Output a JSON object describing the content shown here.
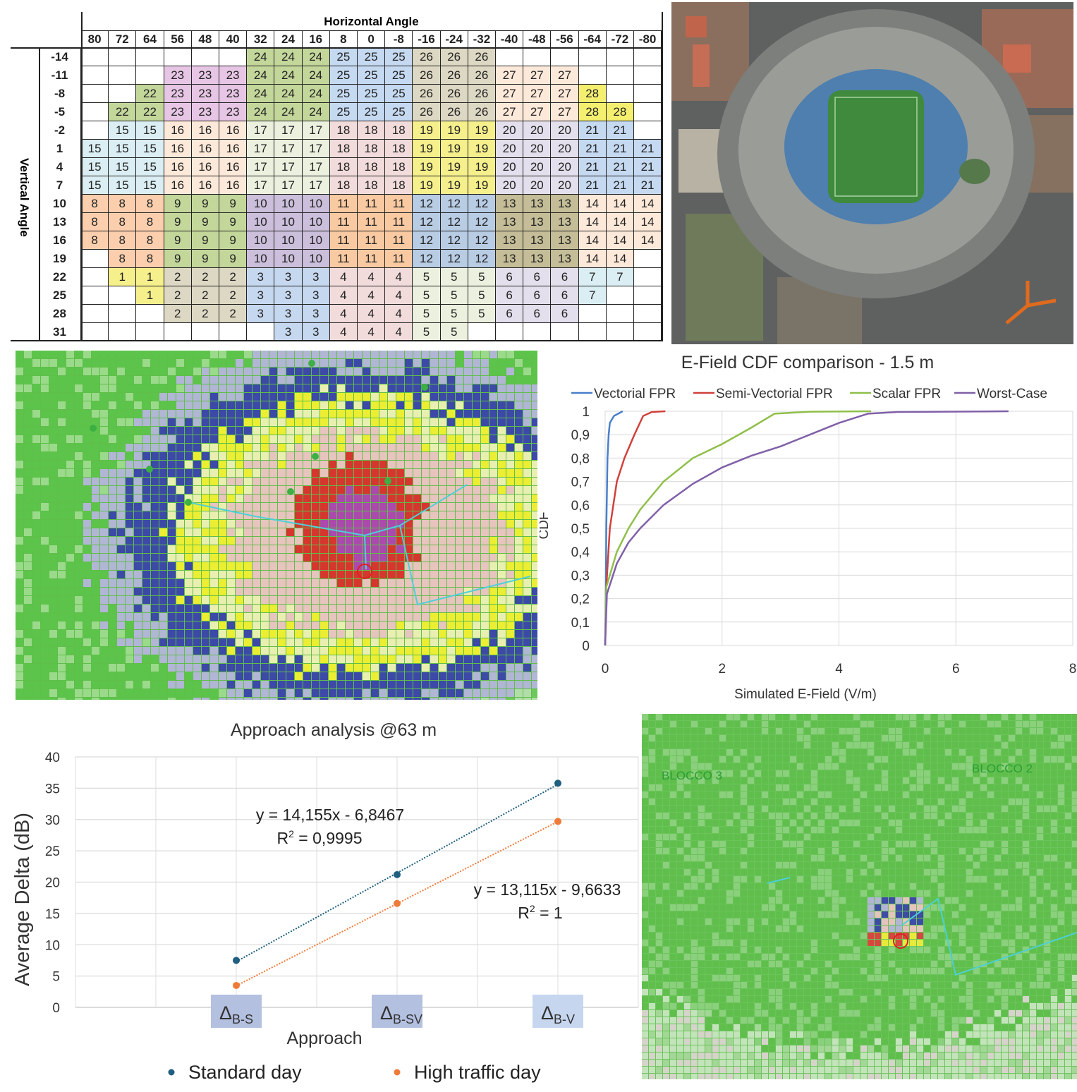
{
  "beam_table": {
    "horizontal_title": "Horizontal Angle",
    "vertical_title": "Vertical Angle",
    "columns": [
      "80",
      "72",
      "64",
      "56",
      "48",
      "40",
      "32",
      "24",
      "16",
      "8",
      "0",
      "-8",
      "-16",
      "-24",
      "-32",
      "-40",
      "-48",
      "-56",
      "-64",
      "-72",
      "-80"
    ],
    "rows": [
      {
        "angle": "-14",
        "beams": [
          null,
          null,
          null,
          null,
          null,
          null,
          24,
          24,
          24,
          25,
          25,
          25,
          26,
          26,
          26,
          null,
          null,
          null,
          null,
          null,
          null
        ]
      },
      {
        "angle": "-11",
        "beams": [
          null,
          null,
          null,
          23,
          23,
          23,
          24,
          24,
          24,
          25,
          25,
          25,
          26,
          26,
          26,
          27,
          27,
          27,
          null,
          null,
          null
        ]
      },
      {
        "angle": "-8",
        "beams": [
          null,
          null,
          22,
          23,
          23,
          23,
          24,
          24,
          24,
          25,
          25,
          25,
          26,
          26,
          26,
          27,
          27,
          27,
          28,
          null,
          null
        ]
      },
      {
        "angle": "-5",
        "beams": [
          null,
          22,
          22,
          23,
          23,
          23,
          24,
          24,
          24,
          25,
          25,
          25,
          26,
          26,
          26,
          27,
          27,
          27,
          28,
          28,
          null
        ]
      },
      {
        "angle": "-2",
        "beams": [
          null,
          15,
          15,
          16,
          16,
          16,
          17,
          17,
          17,
          18,
          18,
          18,
          19,
          19,
          19,
          20,
          20,
          20,
          21,
          21,
          null
        ]
      },
      {
        "angle": "1",
        "beams": [
          15,
          15,
          15,
          16,
          16,
          16,
          17,
          17,
          17,
          18,
          18,
          18,
          19,
          19,
          19,
          20,
          20,
          20,
          21,
          21,
          21
        ]
      },
      {
        "angle": "4",
        "beams": [
          15,
          15,
          15,
          16,
          16,
          16,
          17,
          17,
          17,
          18,
          18,
          18,
          19,
          19,
          19,
          20,
          20,
          20,
          21,
          21,
          21
        ]
      },
      {
        "angle": "7",
        "beams": [
          15,
          15,
          15,
          16,
          16,
          16,
          17,
          17,
          17,
          18,
          18,
          18,
          19,
          19,
          19,
          20,
          20,
          20,
          21,
          21,
          21
        ]
      },
      {
        "angle": "10",
        "beams": [
          8,
          8,
          8,
          9,
          9,
          9,
          10,
          10,
          10,
          11,
          11,
          11,
          12,
          12,
          12,
          13,
          13,
          13,
          14,
          14,
          14
        ]
      },
      {
        "angle": "13",
        "beams": [
          8,
          8,
          8,
          9,
          9,
          9,
          10,
          10,
          10,
          11,
          11,
          11,
          12,
          12,
          12,
          13,
          13,
          13,
          14,
          14,
          14
        ]
      },
      {
        "angle": "16",
        "beams": [
          8,
          8,
          8,
          9,
          9,
          9,
          10,
          10,
          10,
          11,
          11,
          11,
          12,
          12,
          12,
          13,
          13,
          13,
          14,
          14,
          14
        ]
      },
      {
        "angle": "19",
        "beams": [
          null,
          8,
          8,
          9,
          9,
          9,
          10,
          10,
          10,
          11,
          11,
          11,
          12,
          12,
          12,
          13,
          13,
          13,
          14,
          14,
          null
        ]
      },
      {
        "angle": "22",
        "beams": [
          null,
          1,
          1,
          2,
          2,
          2,
          3,
          3,
          3,
          4,
          4,
          4,
          5,
          5,
          5,
          6,
          6,
          6,
          7,
          7,
          null
        ]
      },
      {
        "angle": "25",
        "beams": [
          null,
          null,
          1,
          2,
          2,
          2,
          3,
          3,
          3,
          4,
          4,
          4,
          5,
          5,
          5,
          6,
          6,
          6,
          7,
          null,
          null
        ]
      },
      {
        "angle": "28",
        "beams": [
          null,
          null,
          null,
          2,
          2,
          2,
          3,
          3,
          3,
          4,
          4,
          4,
          5,
          5,
          5,
          6,
          6,
          6,
          null,
          null,
          null
        ]
      },
      {
        "angle": "31",
        "beams": [
          null,
          null,
          null,
          null,
          null,
          null,
          null,
          3,
          3,
          4,
          4,
          4,
          5,
          5,
          null,
          null,
          null,
          null,
          null,
          null,
          null
        ]
      }
    ],
    "beam_colors": {
      "1": "#f5ef8c",
      "2": "#ddd8c3",
      "3": "#c6d8ef",
      "4": "#f2dcdb",
      "5": "#ebf1de",
      "6": "#e4dfec",
      "7": "#daeef3",
      "8": "#fbcfae",
      "9": "#c4d79b",
      "10": "#cbbfdb",
      "11": "#f9caa2",
      "12": "#b8cce4",
      "13": "#c4bd97",
      "14": "#fde9d9",
      "15": "#daeef3",
      "16": "#fde9d9",
      "17": "#ebf1de",
      "18": "#f2dcdb",
      "19": "#f5ef8c",
      "20": "#e4dfec",
      "21": "#c5d9f1",
      "22": "#c4d79b",
      "23": "#e6c6e4",
      "24": "#c4d79b",
      "25": "#c5d9f1",
      "26": "#ddd8c3",
      "27": "#fde9d9",
      "28": "#f5ef70"
    }
  },
  "coverage_map_bottom": {
    "labels": [
      "BLOCCO 3",
      "BLOCCO 2"
    ]
  },
  "chart_data": [
    {
      "type": "line",
      "title": "E-Field CDF comparison - 1.5 m",
      "xlabel": "Simulated E-Field (V/m)",
      "ylabel": "CDF",
      "xlim": [
        0,
        8
      ],
      "ylim": [
        0,
        1
      ],
      "x_ticks": [
        "0",
        "2",
        "4",
        "6",
        "8"
      ],
      "y_ticks": [
        "0",
        "0,1",
        "0,2",
        "0,3",
        "0,4",
        "0,5",
        "0,6",
        "0,7",
        "0,8",
        "0,9",
        "1"
      ],
      "grid": true,
      "legend": "top",
      "series": [
        {
          "name": "Vectorial FPR",
          "color": "#4a7fc9",
          "x": [
            0,
            0.01,
            0.02,
            0.04,
            0.06,
            0.08,
            0.15,
            0.3
          ],
          "y": [
            0,
            0.2,
            0.5,
            0.8,
            0.9,
            0.95,
            0.98,
            1
          ]
        },
        {
          "name": "Semi-Vectorial FPR",
          "color": "#d0413c",
          "x": [
            0,
            0.02,
            0.08,
            0.2,
            0.33,
            0.5,
            0.65,
            0.8,
            1.03
          ],
          "y": [
            0,
            0.25,
            0.5,
            0.7,
            0.8,
            0.9,
            0.98,
            0.997,
            1
          ]
        },
        {
          "name": "Scalar FPR",
          "color": "#8fbf4a",
          "x": [
            0,
            0.02,
            0.2,
            0.4,
            0.6,
            1.0,
            1.5,
            2.0,
            2.5,
            2.9,
            3.5,
            4.55
          ],
          "y": [
            0,
            0.25,
            0.4,
            0.5,
            0.58,
            0.7,
            0.8,
            0.86,
            0.93,
            0.99,
            0.998,
            1
          ]
        },
        {
          "name": "Worst-Case",
          "color": "#8060a8",
          "x": [
            0,
            0.03,
            0.2,
            0.4,
            0.6,
            1.0,
            1.5,
            2.0,
            2.5,
            3.0,
            3.5,
            4.0,
            4.5,
            5.0,
            6.9
          ],
          "y": [
            0,
            0.22,
            0.35,
            0.44,
            0.5,
            0.6,
            0.69,
            0.76,
            0.81,
            0.85,
            0.9,
            0.95,
            0.99,
            0.997,
            1
          ]
        }
      ]
    },
    {
      "type": "scatter",
      "title": "Approach analysis @63 m",
      "xlabel": "Approach",
      "ylabel": "Average Delta (dB)",
      "ylim": [
        0,
        40
      ],
      "y_ticks": [
        "0",
        "5",
        "10",
        "15",
        "20",
        "25",
        "30",
        "35",
        "40"
      ],
      "grid": true,
      "legend": "bottom",
      "categories": [
        {
          "main": "Δ",
          "sub": "B-S"
        },
        {
          "main": "Δ",
          "sub": "B-SV"
        },
        {
          "main": "Δ",
          "sub": "B-V"
        }
      ],
      "series": [
        {
          "name": "Standard day",
          "color": "#1f5f7f",
          "values": [
            7.5,
            21.2,
            35.8
          ],
          "trendline": {
            "equation": "y = 14,155x - 6,8467",
            "r2_label": "R",
            "r2_sup": "2",
            "r2_value": " = 0,9995",
            "slope": 14.155,
            "intercept": -6.8467
          }
        },
        {
          "name": "High traffic day",
          "color": "#ef7b3a",
          "values": [
            3.5,
            16.6,
            29.7
          ],
          "trendline": {
            "equation": "y = 13,115x - 9,6633",
            "r2_label": "R",
            "r2_sup": "2",
            "r2_value": " = 1",
            "slope": 13.115,
            "intercept": -9.6633
          }
        }
      ]
    }
  ]
}
